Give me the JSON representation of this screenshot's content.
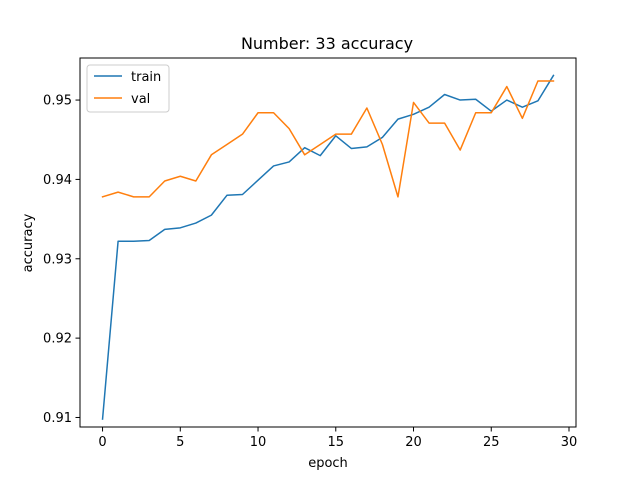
{
  "chart_data": {
    "type": "line",
    "title": "Number: 33 accuracy",
    "xlabel": "epoch",
    "ylabel": "accuracy",
    "xlim": [
      -1.45,
      30.45
    ],
    "ylim": [
      0.9088,
      0.9553
    ],
    "xticks": [
      0,
      5,
      10,
      15,
      20,
      25,
      30
    ],
    "yticks": [
      0.91,
      0.92,
      0.93,
      0.94,
      0.95
    ],
    "grid": false,
    "legend_position": "upper left",
    "x": [
      0,
      1,
      2,
      3,
      4,
      5,
      6,
      7,
      8,
      9,
      10,
      11,
      12,
      13,
      14,
      15,
      16,
      17,
      18,
      19,
      20,
      21,
      22,
      23,
      24,
      25,
      26,
      27,
      28,
      29
    ],
    "series": [
      {
        "name": "train",
        "color": "#1f77b4",
        "values": [
          0.9098,
          0.9322,
          0.9322,
          0.9323,
          0.9337,
          0.9339,
          0.9345,
          0.9355,
          0.938,
          0.9381,
          0.9399,
          0.9417,
          0.9422,
          0.944,
          0.943,
          0.9455,
          0.9439,
          0.9441,
          0.9453,
          0.9476,
          0.9482,
          0.9491,
          0.9507,
          0.95,
          0.9501,
          0.9486,
          0.95,
          0.9491,
          0.9499,
          0.9531
        ]
      },
      {
        "name": "val",
        "color": "#ff7f0e",
        "values": [
          0.9378,
          0.9384,
          0.9378,
          0.9378,
          0.9398,
          0.9404,
          0.9398,
          0.9431,
          0.9444,
          0.9457,
          0.9484,
          0.9484,
          0.9464,
          0.9431,
          0.9444,
          0.9457,
          0.9457,
          0.949,
          0.9444,
          0.9378,
          0.9497,
          0.9471,
          0.9471,
          0.9437,
          0.9484,
          0.9484,
          0.9517,
          0.9477,
          0.9524,
          0.9524
        ]
      }
    ]
  }
}
